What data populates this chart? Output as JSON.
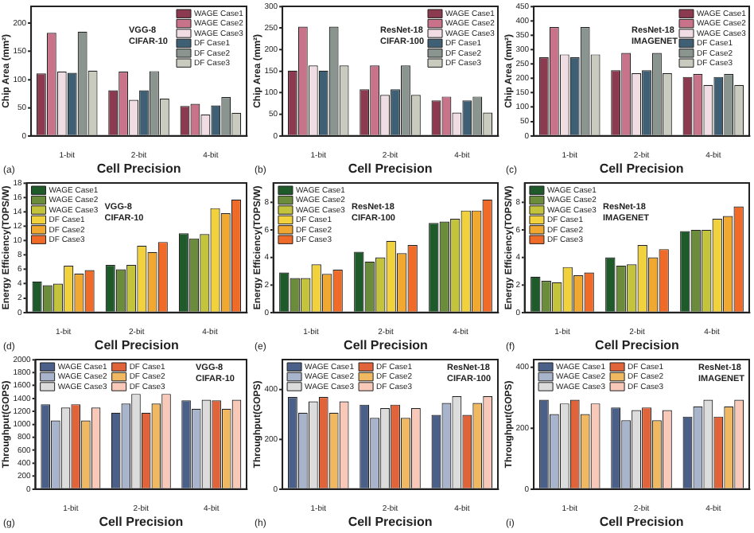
{
  "chart_data": [
    {
      "type": "bar",
      "categories": [
        "1-bit",
        "2-bit",
        "4-bit"
      ],
      "xlabel": "Cell Precision",
      "ylabel": "Chip Area (mm²)",
      "ylim": [
        0,
        230
      ],
      "yticks": [
        0,
        50,
        100,
        150,
        200
      ],
      "legend": "top right",
      "annotations": [
        "VGG-8\nCIFAR-10",
        "(a)"
      ],
      "series": [
        {
          "name": "WAGE Case1",
          "color": "#8b3a4f",
          "values": [
            111,
            81,
            53
          ]
        },
        {
          "name": "WAGE Case2",
          "color": "#c8738a",
          "values": [
            183,
            114,
            57
          ]
        },
        {
          "name": "WAGE Case3",
          "color": "#f0dde3",
          "values": [
            114,
            64,
            38
          ]
        },
        {
          "name": "DF Case1",
          "color": "#3f5f75",
          "values": [
            112,
            81,
            54
          ]
        },
        {
          "name": "DF Case2",
          "color": "#8a9590",
          "values": [
            185,
            115,
            69
          ]
        },
        {
          "name": "DF Case3",
          "color": "#c8cbbd",
          "values": [
            116,
            66,
            41
          ]
        }
      ]
    },
    {
      "type": "bar",
      "categories": [
        "1-bit",
        "2-bit",
        "4-bit"
      ],
      "xlabel": "Cell Precision",
      "ylabel": "Chip Area (mm²)",
      "ylim": [
        0,
        300
      ],
      "yticks": [
        0,
        50,
        100,
        150,
        200,
        250,
        300
      ],
      "legend": "top right",
      "annotations": [
        "ResNet-18\nCIFAR-100",
        "(b)"
      ],
      "series": [
        {
          "name": "WAGE Case1",
          "color": "#8b3a4f",
          "values": [
            151,
            108,
            82
          ]
        },
        {
          "name": "WAGE Case2",
          "color": "#c8738a",
          "values": [
            253,
            163,
            91
          ]
        },
        {
          "name": "WAGE Case3",
          "color": "#f0dde3",
          "values": [
            163,
            95,
            54
          ]
        },
        {
          "name": "DF Case1",
          "color": "#3f5f75",
          "values": [
            151,
            108,
            82
          ]
        },
        {
          "name": "DF Case2",
          "color": "#8a9590",
          "values": [
            253,
            163,
            91
          ]
        },
        {
          "name": "DF Case3",
          "color": "#c8cbbd",
          "values": [
            163,
            95,
            54
          ]
        }
      ]
    },
    {
      "type": "bar",
      "categories": [
        "1-bit",
        "2-bit",
        "4-bit"
      ],
      "xlabel": "Cell Precision",
      "ylabel": "Chip Area (mm²)",
      "ylim": [
        0,
        450
      ],
      "yticks": [
        0,
        50,
        100,
        150,
        200,
        250,
        300,
        350,
        400,
        450
      ],
      "legend": "top right",
      "annotations": [
        "ResNet-18\nIMAGENET",
        "(c)"
      ],
      "series": [
        {
          "name": "WAGE Case1",
          "color": "#8b3a4f",
          "values": [
            273,
            228,
            205
          ]
        },
        {
          "name": "WAGE Case2",
          "color": "#c8738a",
          "values": [
            378,
            288,
            215
          ]
        },
        {
          "name": "WAGE Case3",
          "color": "#f0dde3",
          "values": [
            283,
            218,
            177
          ]
        },
        {
          "name": "DF Case1",
          "color": "#3f5f75",
          "values": [
            273,
            228,
            205
          ]
        },
        {
          "name": "DF Case2",
          "color": "#8a9590",
          "values": [
            378,
            288,
            215
          ]
        },
        {
          "name": "DF Case3",
          "color": "#c8cbbd",
          "values": [
            283,
            218,
            177
          ]
        }
      ]
    },
    {
      "type": "bar",
      "categories": [
        "1-bit",
        "2-bit",
        "4-bit"
      ],
      "xlabel": "Cell Precision",
      "ylabel": "Energy Efficiency(TOPS/W)",
      "ylim": [
        0,
        18
      ],
      "yticks": [
        0,
        2,
        4,
        6,
        8,
        10,
        12,
        14,
        16,
        18
      ],
      "legend": "top left",
      "annotations": [
        "VGG-8\nCIFAR-10",
        "(d)"
      ],
      "series": [
        {
          "name": "WAGE Case1",
          "color": "#1e5a2a",
          "values": [
            4.3,
            6.6,
            11.0
          ]
        },
        {
          "name": "WAGE Case2",
          "color": "#6b8c3a",
          "values": [
            3.8,
            6.0,
            10.3
          ]
        },
        {
          "name": "WAGE Case3",
          "color": "#c4c43c",
          "values": [
            4.0,
            6.6,
            10.9
          ]
        },
        {
          "name": "DF Case1",
          "color": "#f2d23c",
          "values": [
            6.5,
            9.3,
            14.5
          ]
        },
        {
          "name": "DF Case2",
          "color": "#f0a830",
          "values": [
            5.4,
            8.4,
            13.8
          ]
        },
        {
          "name": "DF Case3",
          "color": "#f06a28",
          "values": [
            5.9,
            9.8,
            15.7
          ]
        }
      ]
    },
    {
      "type": "bar",
      "categories": [
        "1-bit",
        "2-bit",
        "4-bit"
      ],
      "xlabel": "Cell Precision",
      "ylabel": "Energy Efficiency(TOPS/W)",
      "ylim": [
        0,
        9.4
      ],
      "yticks": [
        0,
        2,
        4,
        6,
        8
      ],
      "legend": "top left",
      "annotations": [
        "ResNet-18\nCIFAR-100",
        "(e)"
      ],
      "series": [
        {
          "name": "WAGE Case1",
          "color": "#1e5a2a",
          "values": [
            2.9,
            4.4,
            6.5
          ]
        },
        {
          "name": "WAGE Case2",
          "color": "#6b8c3a",
          "values": [
            2.5,
            3.7,
            6.6
          ]
        },
        {
          "name": "WAGE Case3",
          "color": "#c4c43c",
          "values": [
            2.5,
            4.0,
            6.8
          ]
        },
        {
          "name": "DF Case1",
          "color": "#f2d23c",
          "values": [
            3.5,
            5.2,
            7.4
          ]
        },
        {
          "name": "DF Case2",
          "color": "#f0a830",
          "values": [
            2.8,
            4.3,
            7.4
          ]
        },
        {
          "name": "DF Case3",
          "color": "#f06a28",
          "values": [
            3.1,
            4.9,
            8.2
          ]
        }
      ]
    },
    {
      "type": "bar",
      "categories": [
        "1-bit",
        "2-bit",
        "4-bit"
      ],
      "xlabel": "Cell Precision",
      "ylabel": "Energy Efficiency(TOPS/W)",
      "ylim": [
        0,
        9.4
      ],
      "yticks": [
        0,
        2,
        4,
        6,
        8
      ],
      "legend": "top left",
      "annotations": [
        "ResNet-18\nIMAGENET",
        "(f)"
      ],
      "series": [
        {
          "name": "WAGE Case1",
          "color": "#1e5a2a",
          "values": [
            2.6,
            4.0,
            5.9
          ]
        },
        {
          "name": "WAGE Case2",
          "color": "#6b8c3a",
          "values": [
            2.3,
            3.4,
            6.0
          ]
        },
        {
          "name": "WAGE Case3",
          "color": "#c4c43c",
          "values": [
            2.2,
            3.5,
            6.0
          ]
        },
        {
          "name": "DF Case1",
          "color": "#f2d23c",
          "values": [
            3.3,
            4.9,
            6.8
          ]
        },
        {
          "name": "DF Case2",
          "color": "#f0a830",
          "values": [
            2.7,
            4.0,
            7.0
          ]
        },
        {
          "name": "DF Case3",
          "color": "#f06a28",
          "values": [
            2.9,
            4.6,
            7.7
          ]
        }
      ]
    },
    {
      "type": "bar",
      "categories": [
        "1-bit",
        "2-bit",
        "4-bit"
      ],
      "xlabel": "Cell Precision",
      "ylabel": "Throughput(GOPS)",
      "ylim": [
        0,
        2000
      ],
      "yticks": [
        0,
        200,
        400,
        600,
        800,
        1000,
        1200,
        1400,
        1600,
        1800,
        2000
      ],
      "legend": "top left",
      "annotations": [
        "VGG-8\nCIFAR-10",
        "(g)"
      ],
      "series": [
        {
          "name": "WAGE Case1",
          "color": "#4a6088",
          "values": [
            1310,
            1180,
            1370
          ]
        },
        {
          "name": "WAGE Case2",
          "color": "#a8b4cc",
          "values": [
            1060,
            1320,
            1240
          ]
        },
        {
          "name": "WAGE Case3",
          "color": "#dcdcdc",
          "values": [
            1260,
            1470,
            1380
          ]
        },
        {
          "name": "DF Case1",
          "color": "#e0633a",
          "values": [
            1310,
            1180,
            1370
          ]
        },
        {
          "name": "DF Case2",
          "color": "#f0b860",
          "values": [
            1060,
            1320,
            1240
          ]
        },
        {
          "name": "DF Case3",
          "color": "#f8c8b8",
          "values": [
            1260,
            1470,
            1380
          ]
        }
      ]
    },
    {
      "type": "bar",
      "categories": [
        "1-bit",
        "2-bit",
        "4-bit"
      ],
      "xlabel": "Cell Precision",
      "ylabel": "Throughput(GOPS)",
      "ylim": [
        0,
        520
      ],
      "yticks": [
        0,
        200,
        400
      ],
      "legend": "top left",
      "annotations": [
        "ResNet-18\nCIFAR-100",
        "(h)"
      ],
      "series": [
        {
          "name": "WAGE Case1",
          "color": "#4a6088",
          "values": [
            370,
            339,
            298
          ]
        },
        {
          "name": "WAGE Case2",
          "color": "#a8b4cc",
          "values": [
            307,
            286,
            346
          ]
        },
        {
          "name": "WAGE Case3",
          "color": "#dcdcdc",
          "values": [
            352,
            325,
            373
          ]
        },
        {
          "name": "DF Case1",
          "color": "#e0633a",
          "values": [
            370,
            339,
            298
          ]
        },
        {
          "name": "DF Case2",
          "color": "#f0b860",
          "values": [
            307,
            286,
            346
          ]
        },
        {
          "name": "DF Case3",
          "color": "#f8c8b8",
          "values": [
            352,
            325,
            373
          ]
        }
      ]
    },
    {
      "type": "bar",
      "categories": [
        "1-bit",
        "2-bit",
        "4-bit"
      ],
      "xlabel": "Cell Precision",
      "ylabel": "Throughput(GOPS)",
      "ylim": [
        0,
        425
      ],
      "yticks": [
        0,
        200,
        400
      ],
      "legend": "top left",
      "annotations": [
        "ResNet-18\nIMAGENET",
        "(i)"
      ],
      "series": [
        {
          "name": "WAGE Case1",
          "color": "#4a6088",
          "values": [
            293,
            268,
            238
          ]
        },
        {
          "name": "WAGE Case2",
          "color": "#a8b4cc",
          "values": [
            246,
            226,
            271
          ]
        },
        {
          "name": "WAGE Case3",
          "color": "#dcdcdc",
          "values": [
            281,
            259,
            293
          ]
        },
        {
          "name": "DF Case1",
          "color": "#e0633a",
          "values": [
            293,
            268,
            238
          ]
        },
        {
          "name": "DF Case2",
          "color": "#f0b860",
          "values": [
            246,
            226,
            271
          ]
        },
        {
          "name": "DF Case3",
          "color": "#f8c8b8",
          "values": [
            281,
            259,
            293
          ]
        }
      ]
    }
  ]
}
